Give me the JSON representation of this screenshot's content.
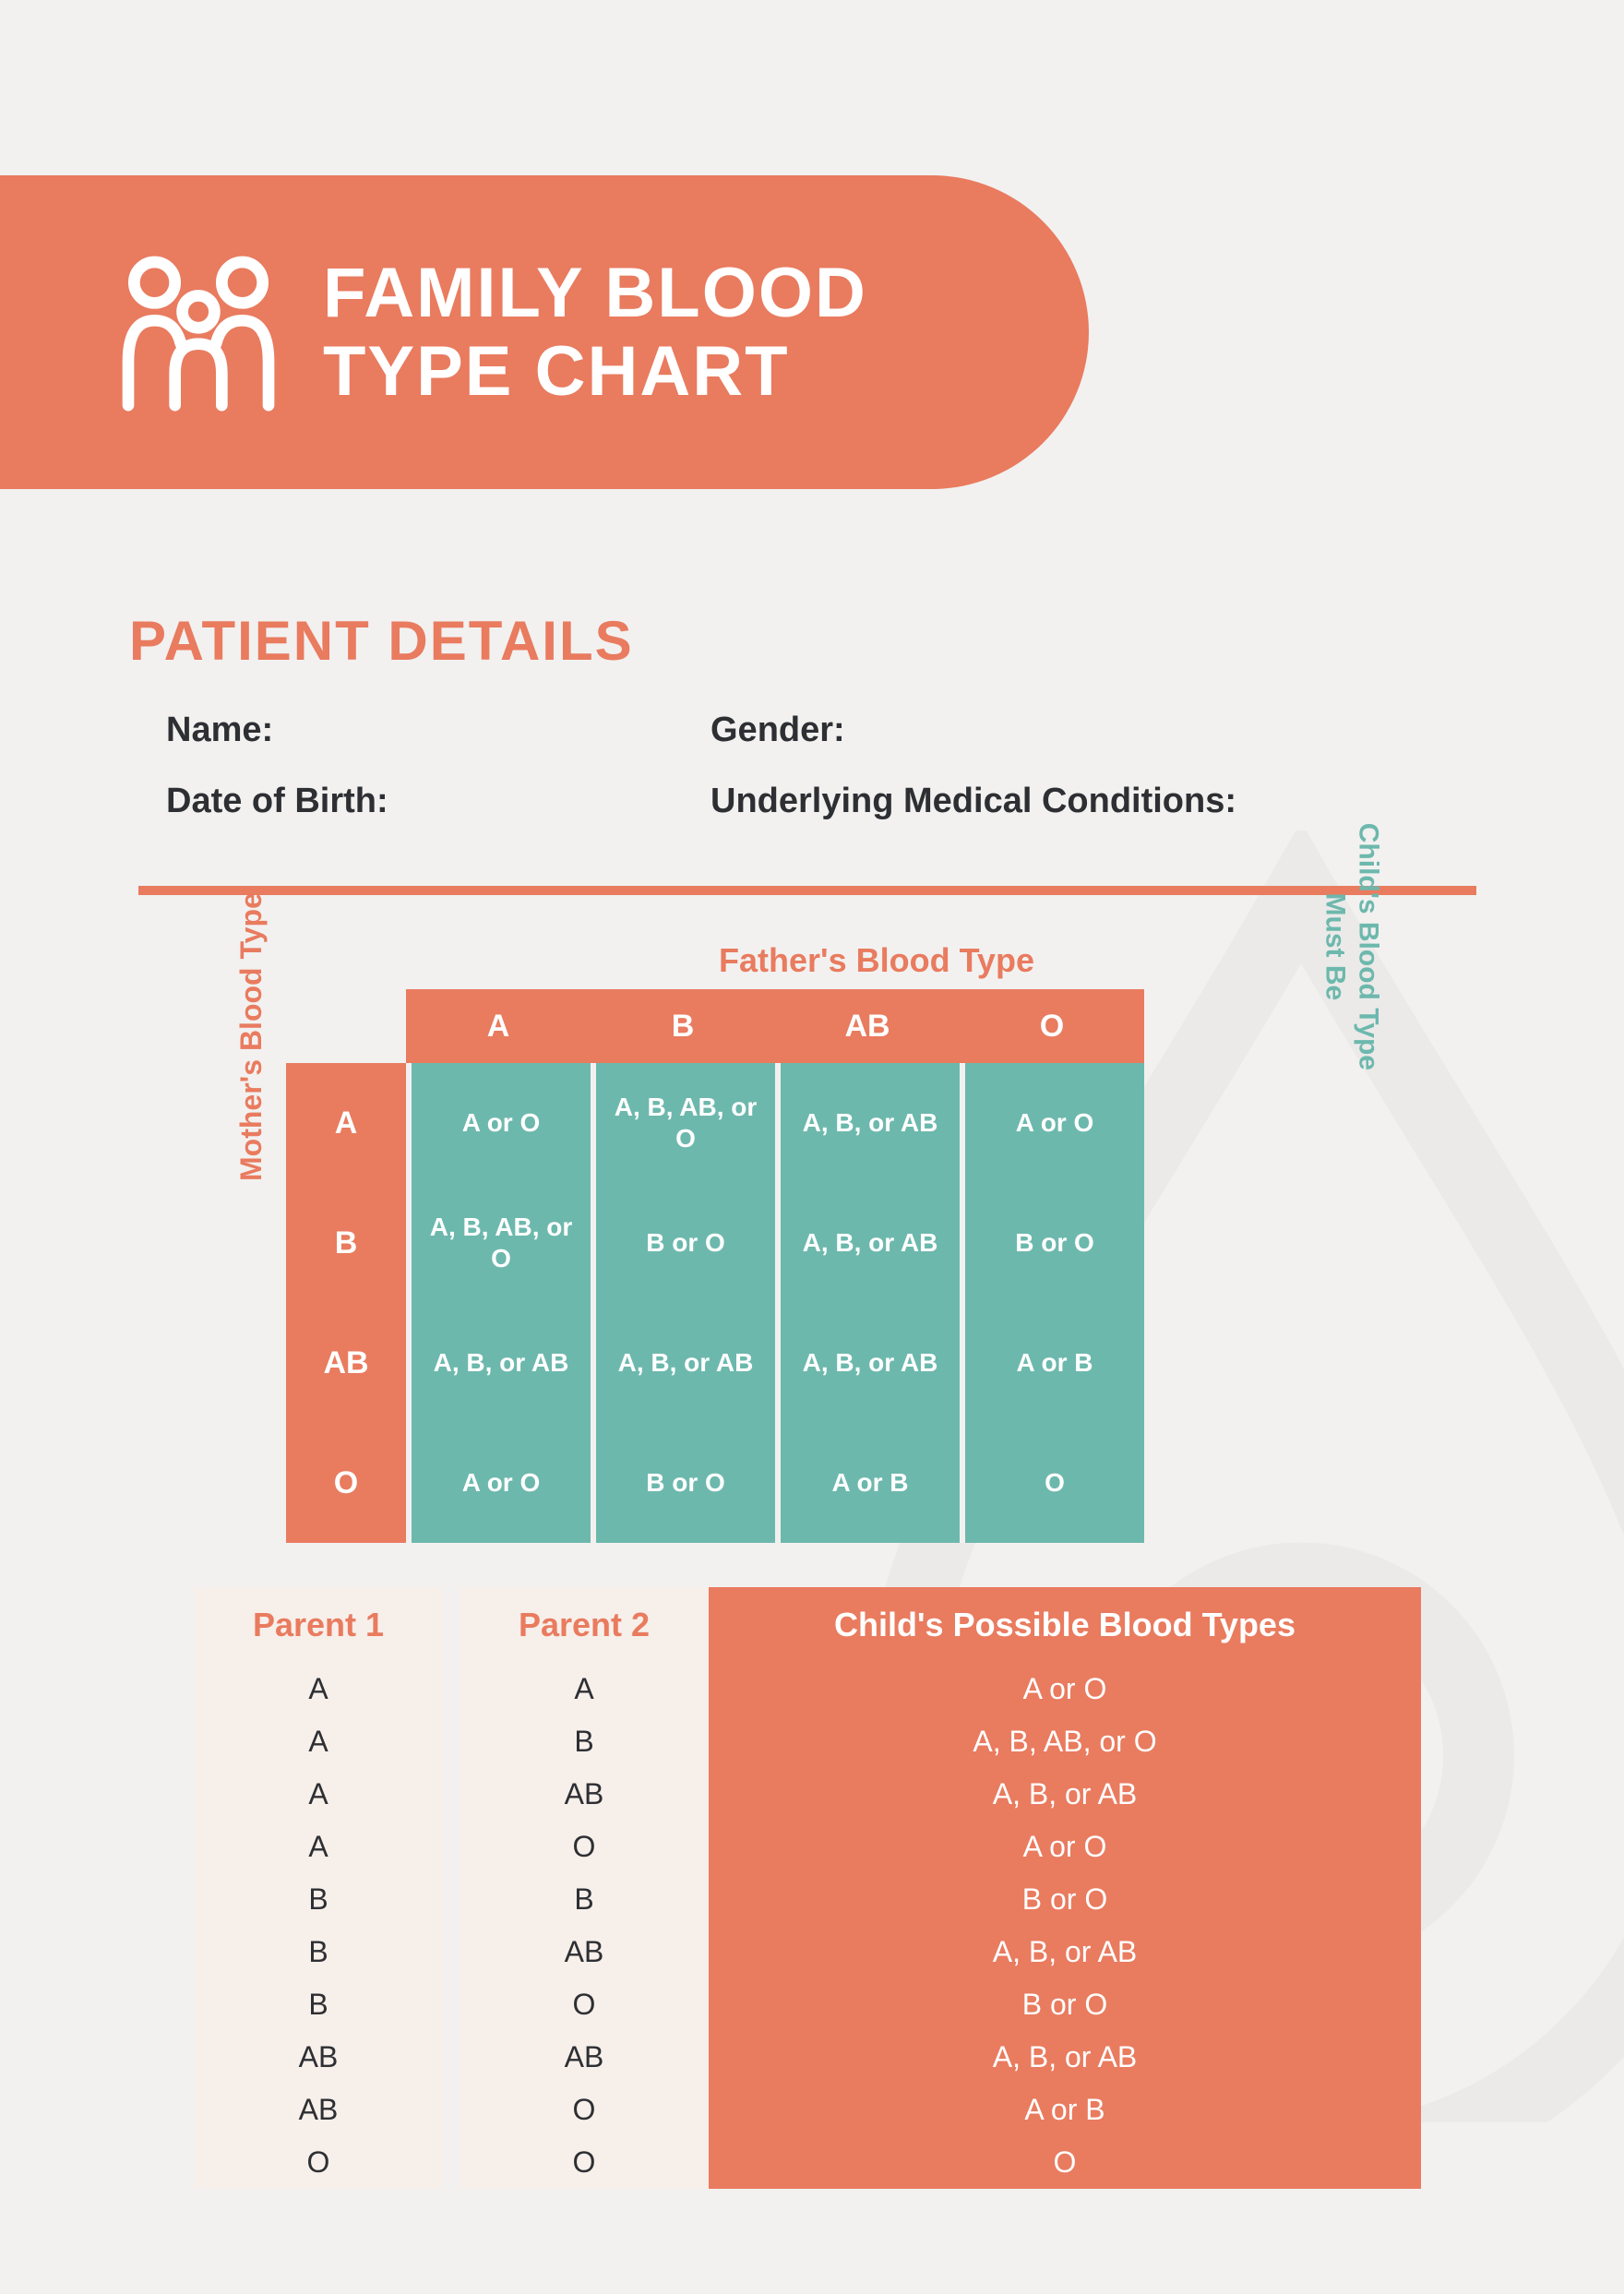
{
  "colors": {
    "accent": "#e97b5f",
    "teal": "#6db8ad",
    "bg": "#f2f1f0",
    "light_panel": "#f7efea",
    "text": "#2d2f33"
  },
  "header": {
    "title_line1": "FAMILY BLOOD",
    "title_line2": "TYPE CHART"
  },
  "patient": {
    "section_title": "PATIENT DETAILS",
    "name_label": "Name:",
    "gender_label": "Gender:",
    "dob_label": "Date of Birth:",
    "conditions_label": "Underlying Medical Conditions:"
  },
  "matrix": {
    "father_label": "Father's Blood Type",
    "mother_label": "Mother's Blood Type",
    "child_label_line1": "Child's Blood Type",
    "child_label_line2": "Must Be",
    "cols": [
      "A",
      "B",
      "AB",
      "O"
    ],
    "rows": [
      "A",
      "B",
      "AB",
      "O"
    ],
    "cells": [
      [
        "A or O",
        "A, B, AB, or O",
        "A, B, or AB",
        "A or O"
      ],
      [
        "A, B, AB, or O",
        "B or O",
        "A, B, or AB",
        "B or O"
      ],
      [
        "A, B, or AB",
        "A, B, or AB",
        "A, B, or AB",
        "A or B"
      ],
      [
        "A or O",
        "B or O",
        "A or B",
        "O"
      ]
    ]
  },
  "table": {
    "headers": [
      "Parent 1",
      "Parent 2",
      "Child's Possible Blood Types"
    ],
    "rows": [
      [
        "A",
        "A",
        "A or O"
      ],
      [
        "A",
        "B",
        "A, B, AB, or O"
      ],
      [
        "A",
        "AB",
        "A, B, or AB"
      ],
      [
        "A",
        "O",
        "A or O"
      ],
      [
        "B",
        "B",
        "B or O"
      ],
      [
        "B",
        "AB",
        "A, B, or AB"
      ],
      [
        "B",
        "O",
        "B or O"
      ],
      [
        "AB",
        "AB",
        "A, B, or AB"
      ],
      [
        "AB",
        "O",
        "A or B"
      ],
      [
        "O",
        "O",
        "O"
      ]
    ]
  }
}
